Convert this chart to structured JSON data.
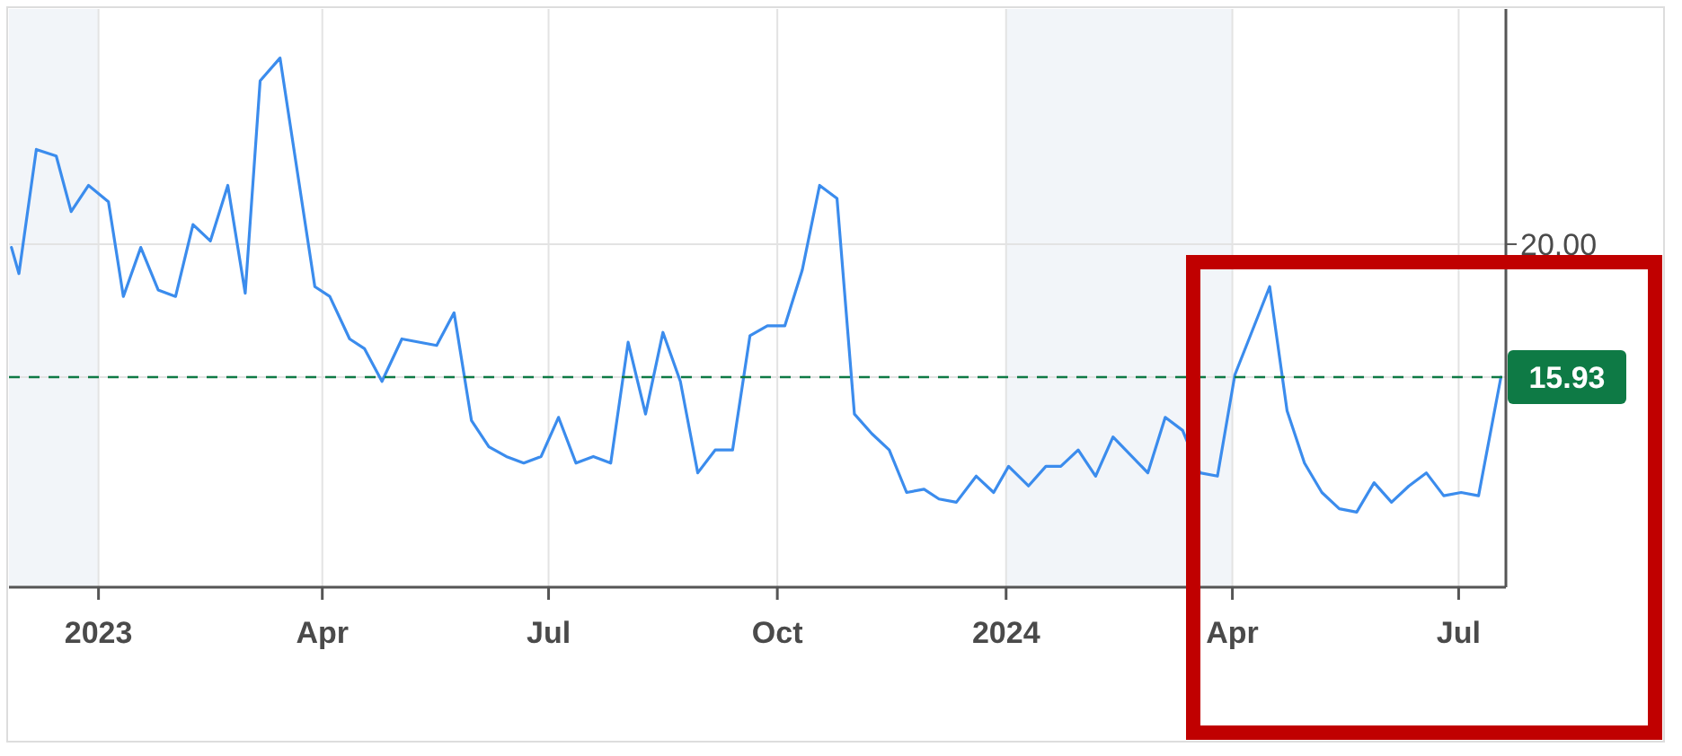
{
  "chart_data": {
    "type": "line",
    "x": [
      "2022-11-27",
      "2022-11-30",
      "2022-12-07",
      "2022-12-15",
      "2022-12-21",
      "2022-12-28",
      "2023-01-05",
      "2023-01-11",
      "2023-01-18",
      "2023-01-25",
      "2023-02-01",
      "2023-02-08",
      "2023-02-15",
      "2023-02-22",
      "2023-03-01",
      "2023-03-07",
      "2023-03-15",
      "2023-03-29",
      "2023-04-04",
      "2023-04-12",
      "2023-04-18",
      "2023-04-25",
      "2023-05-03",
      "2023-05-17",
      "2023-05-24",
      "2023-05-31",
      "2023-06-07",
      "2023-06-14",
      "2023-06-21",
      "2023-06-28",
      "2023-07-05",
      "2023-07-12",
      "2023-07-19",
      "2023-07-26",
      "2023-08-02",
      "2023-08-09",
      "2023-08-16",
      "2023-08-23",
      "2023-08-30",
      "2023-09-06",
      "2023-09-13",
      "2023-09-20",
      "2023-09-27",
      "2023-10-04",
      "2023-10-11",
      "2023-10-18",
      "2023-10-25",
      "2023-11-01",
      "2023-11-08",
      "2023-11-15",
      "2023-11-22",
      "2023-11-29",
      "2023-12-05",
      "2023-12-12",
      "2023-12-20",
      "2023-12-27",
      "2024-01-02",
      "2024-01-10",
      "2024-01-17",
      "2024-01-23",
      "2024-01-30",
      "2024-02-06",
      "2024-02-13",
      "2024-02-27",
      "2024-03-05",
      "2024-03-12",
      "2024-03-19",
      "2024-03-26",
      "2024-04-02",
      "2024-04-16",
      "2024-04-23",
      "2024-04-30",
      "2024-05-07",
      "2024-05-14",
      "2024-05-21",
      "2024-05-28",
      "2024-06-04",
      "2024-06-11",
      "2024-06-18",
      "2024-06-25",
      "2024-07-02",
      "2024-07-09",
      "2024-07-18"
    ],
    "series": [
      {
        "color": "#3b8ced",
        "values": [
          19.9,
          19.1,
          22.9,
          22.7,
          21.0,
          21.8,
          21.3,
          18.4,
          19.9,
          18.6,
          18.4,
          20.6,
          20.1,
          21.8,
          18.5,
          25.0,
          25.7,
          18.7,
          18.4,
          17.1,
          16.8,
          15.8,
          17.1,
          16.9,
          17.9,
          14.6,
          13.8,
          13.5,
          13.3,
          13.5,
          14.7,
          13.3,
          13.5,
          13.3,
          17.0,
          14.8,
          17.3,
          15.8,
          13.0,
          13.7,
          13.7,
          17.2,
          17.5,
          17.5,
          19.2,
          21.8,
          21.4,
          14.8,
          14.2,
          13.7,
          12.4,
          12.5,
          12.2,
          12.1,
          12.9,
          12.4,
          13.2,
          12.6,
          13.2,
          13.2,
          13.7,
          12.9,
          14.1,
          13.0,
          14.7,
          14.3,
          13.0,
          12.9,
          16.0,
          18.7,
          14.9,
          13.3,
          12.4,
          11.9,
          11.8,
          12.7,
          12.1,
          12.6,
          13.0,
          12.3,
          12.4,
          12.3,
          15.93
        ]
      }
    ],
    "xlim": [
      "2022-11-26",
      "2024-07-20"
    ],
    "xticks": [
      {
        "value": "2023-01-01",
        "label": "2023"
      },
      {
        "value": "2023-04-01",
        "label": "Apr"
      },
      {
        "value": "2023-07-01",
        "label": "Jul"
      },
      {
        "value": "2023-10-01",
        "label": "Oct"
      },
      {
        "value": "2024-01-01",
        "label": "2024"
      },
      {
        "value": "2024-04-01",
        "label": "Apr"
      },
      {
        "value": "2024-07-01",
        "label": "Jul"
      }
    ],
    "ylim": [
      9.5,
      27.2
    ],
    "yticks": [
      {
        "value": 15.93,
        "label": "15.93"
      },
      {
        "value": 20,
        "label": "20.00"
      }
    ],
    "ref_lines": [
      {
        "axis": "y",
        "value": 15.93,
        "color": "#0e7a45",
        "line_style": "dashed"
      }
    ],
    "bands": [
      {
        "axis": "x",
        "from": "2022-11-26",
        "to": "2023-01-01",
        "color": "#f2f5f9"
      },
      {
        "axis": "x",
        "from": "2024-01-01",
        "to": "2024-04-01",
        "color": "#f2f5f9"
      }
    ],
    "grid": true,
    "marker": "none",
    "line_style": "solid"
  }
}
